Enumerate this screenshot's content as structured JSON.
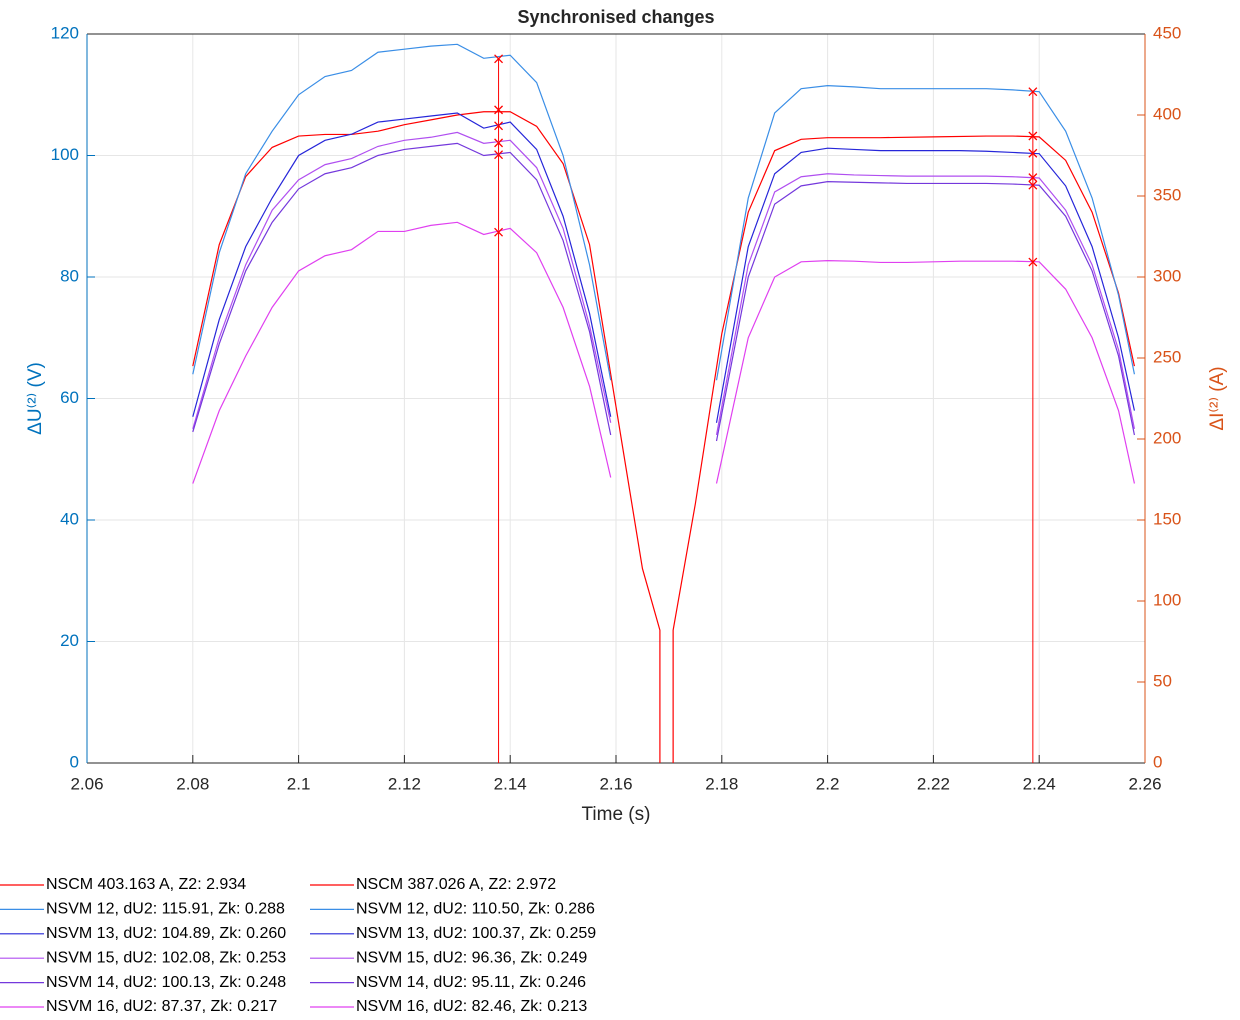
{
  "chart_data": {
    "type": "line",
    "title": "Synchronised changes",
    "xlabel": "Time (s)",
    "ylabel": "ΔU⁽²⁾ (V)",
    "y2label": "ΔI⁽²⁾ (A)",
    "xlim": [
      2.06,
      2.26
    ],
    "xticks": [
      2.06,
      2.08,
      2.1,
      2.12,
      2.14,
      2.16,
      2.18,
      2.2,
      2.22,
      2.24,
      2.26
    ],
    "ylim": [
      0,
      120
    ],
    "yticks": [
      0,
      20,
      40,
      60,
      80,
      100,
      120
    ],
    "y2lim": [
      0,
      450
    ],
    "y2ticks": [
      0,
      50,
      100,
      150,
      200,
      250,
      300,
      350,
      400,
      450
    ],
    "ycolor": "#0072bd",
    "y2color": "#d95319",
    "grid": true,
    "series": [
      {
        "name": "NSCM 403.163 A, Z2: 2.934",
        "color": "#ff0000",
        "axis": "y2",
        "x": [
          2.08,
          2.085,
          2.09,
          2.095,
          2.1,
          2.105,
          2.11,
          2.115,
          2.12,
          2.125,
          2.13,
          2.135,
          2.14,
          2.145,
          2.15,
          2.155,
          2.16,
          2.165,
          2.1683,
          2.1683
        ],
        "values": [
          245,
          320,
          362,
          380,
          387,
          388,
          388,
          390,
          394,
          397,
          400,
          402,
          402,
          393,
          370,
          320,
          220,
          120,
          82,
          0
        ],
        "marker": {
          "x": 2.1378,
          "value": 403.163
        }
      },
      {
        "name": "NSVM 12, dU2: 115.91, Zk: 0.288",
        "color": "#3a8ee6",
        "x": [
          2.08,
          2.085,
          2.09,
          2.095,
          2.1,
          2.105,
          2.11,
          2.115,
          2.12,
          2.125,
          2.13,
          2.135,
          2.14,
          2.145,
          2.15,
          2.155,
          2.159
        ],
        "values": [
          64,
          84,
          97,
          104,
          110,
          113,
          114,
          117,
          117.5,
          118,
          118.3,
          116,
          116.5,
          112,
          100,
          82,
          63
        ],
        "marker": {
          "x": 2.1378,
          "value": 115.91
        }
      },
      {
        "name": "NSVM 13, dU2: 104.89, Zk: 0.260",
        "color": "#2626d9",
        "x": [
          2.08,
          2.085,
          2.09,
          2.095,
          2.1,
          2.105,
          2.11,
          2.115,
          2.12,
          2.125,
          2.13,
          2.135,
          2.14,
          2.145,
          2.15,
          2.155,
          2.159
        ],
        "values": [
          57,
          73,
          85,
          93,
          100,
          102.5,
          103.5,
          105.5,
          106,
          106.5,
          107,
          104.5,
          105.5,
          101,
          90,
          74,
          57
        ],
        "marker": {
          "x": 2.1378,
          "value": 104.89
        }
      },
      {
        "name": "NSVM 15, dU2: 102.08, Zk: 0.253",
        "color": "#b04ff0",
        "x": [
          2.08,
          2.085,
          2.09,
          2.095,
          2.1,
          2.105,
          2.11,
          2.115,
          2.12,
          2.125,
          2.13,
          2.135,
          2.14,
          2.145,
          2.15,
          2.155,
          2.159
        ],
        "values": [
          55,
          70,
          82,
          91,
          96,
          98.5,
          99.5,
          101.5,
          102.5,
          103,
          103.8,
          102,
          102.5,
          98,
          88,
          72,
          56
        ],
        "marker": {
          "x": 2.1378,
          "value": 102.08
        }
      },
      {
        "name": "NSVM 14, dU2: 100.13, Zk: 0.248",
        "color": "#7438dc",
        "x": [
          2.08,
          2.085,
          2.09,
          2.095,
          2.1,
          2.105,
          2.11,
          2.115,
          2.12,
          2.125,
          2.13,
          2.135,
          2.14,
          2.145,
          2.15,
          2.155,
          2.159
        ],
        "values": [
          54.5,
          69,
          81,
          89,
          94.5,
          97,
          98,
          100,
          101,
          101.5,
          102,
          100,
          100.5,
          96,
          86,
          71,
          54
        ],
        "marker": {
          "x": 2.1378,
          "value": 100.13
        }
      },
      {
        "name": "NSVM 16, dU2: 87.37, Zk: 0.217",
        "color": "#e040f0",
        "x": [
          2.08,
          2.085,
          2.09,
          2.095,
          2.1,
          2.105,
          2.11,
          2.115,
          2.12,
          2.125,
          2.13,
          2.135,
          2.14,
          2.145,
          2.15,
          2.155,
          2.159
        ],
        "values": [
          46,
          58,
          67,
          75,
          81,
          83.5,
          84.5,
          87.5,
          87.5,
          88.5,
          89,
          87,
          88,
          84,
          75,
          62,
          47
        ],
        "marker": {
          "x": 2.1378,
          "value": 87.37
        }
      },
      {
        "name": "NSCM 387.026 A, Z2: 2.972",
        "color": "#ff0000",
        "axis": "y2",
        "x": [
          2.1708,
          2.1708,
          2.175,
          2.18,
          2.185,
          2.19,
          2.195,
          2.2,
          2.21,
          2.22,
          2.23,
          2.235,
          2.24,
          2.245,
          2.25,
          2.255,
          2.258
        ],
        "values": [
          0,
          82,
          160,
          265,
          340,
          378,
          385,
          386,
          386,
          386.5,
          387,
          387,
          386.5,
          372,
          340,
          290,
          245
        ],
        "marker": {
          "x": 2.2388,
          "value": 387.026
        }
      },
      {
        "name": "NSVM 12, dU2: 110.50, Zk: 0.286",
        "color": "#3a8ee6",
        "x": [
          2.179,
          2.185,
          2.19,
          2.195,
          2.2,
          2.205,
          2.21,
          2.215,
          2.22,
          2.225,
          2.23,
          2.235,
          2.24,
          2.245,
          2.25,
          2.255,
          2.258
        ],
        "values": [
          63,
          93,
          107,
          111,
          111.5,
          111.3,
          111,
          111,
          111,
          111,
          111,
          110.8,
          110.5,
          104,
          93,
          77,
          64
        ],
        "marker": {
          "x": 2.2388,
          "value": 110.5
        }
      },
      {
        "name": "NSVM 13, dU2: 100.37, Zk: 0.259",
        "color": "#2626d9",
        "x": [
          2.179,
          2.185,
          2.19,
          2.195,
          2.2,
          2.205,
          2.21,
          2.215,
          2.22,
          2.225,
          2.23,
          2.235,
          2.24,
          2.245,
          2.25,
          2.255,
          2.258
        ],
        "values": [
          56,
          85,
          97,
          100.5,
          101.2,
          101,
          100.8,
          100.8,
          100.8,
          100.8,
          100.7,
          100.5,
          100.3,
          95,
          85,
          70,
          58
        ],
        "marker": {
          "x": 2.2388,
          "value": 100.37
        }
      },
      {
        "name": "NSVM 15, dU2: 96.36, Zk: 0.249",
        "color": "#b04ff0",
        "x": [
          2.179,
          2.185,
          2.19,
          2.195,
          2.2,
          2.205,
          2.21,
          2.215,
          2.22,
          2.225,
          2.23,
          2.235,
          2.24,
          2.245,
          2.25,
          2.255,
          2.258
        ],
        "values": [
          54,
          82,
          94,
          96.5,
          97,
          96.8,
          96.7,
          96.6,
          96.6,
          96.6,
          96.6,
          96.5,
          96.3,
          91,
          82,
          68,
          55
        ],
        "marker": {
          "x": 2.2388,
          "value": 96.36
        }
      },
      {
        "name": "NSVM 14, dU2: 95.11, Zk: 0.246",
        "color": "#7438dc",
        "x": [
          2.179,
          2.185,
          2.19,
          2.195,
          2.2,
          2.205,
          2.21,
          2.215,
          2.22,
          2.225,
          2.23,
          2.235,
          2.24,
          2.245,
          2.25,
          2.255,
          2.258
        ],
        "values": [
          53,
          80,
          92,
          95,
          95.7,
          95.6,
          95.5,
          95.4,
          95.4,
          95.4,
          95.4,
          95.3,
          95.1,
          90,
          81,
          67,
          54
        ],
        "marker": {
          "x": 2.2388,
          "value": 95.11
        }
      },
      {
        "name": "NSVM 16, dU2: 82.46, Zk: 0.213",
        "color": "#e040f0",
        "x": [
          2.179,
          2.185,
          2.19,
          2.195,
          2.2,
          2.205,
          2.21,
          2.215,
          2.22,
          2.225,
          2.23,
          2.235,
          2.24,
          2.245,
          2.25,
          2.255,
          2.258
        ],
        "values": [
          46,
          70,
          80,
          82.5,
          82.7,
          82.6,
          82.4,
          82.4,
          82.5,
          82.6,
          82.6,
          82.6,
          82.5,
          78,
          70,
          58,
          46
        ],
        "marker": {
          "x": 2.2388,
          "value": 82.46
        }
      }
    ]
  }
}
